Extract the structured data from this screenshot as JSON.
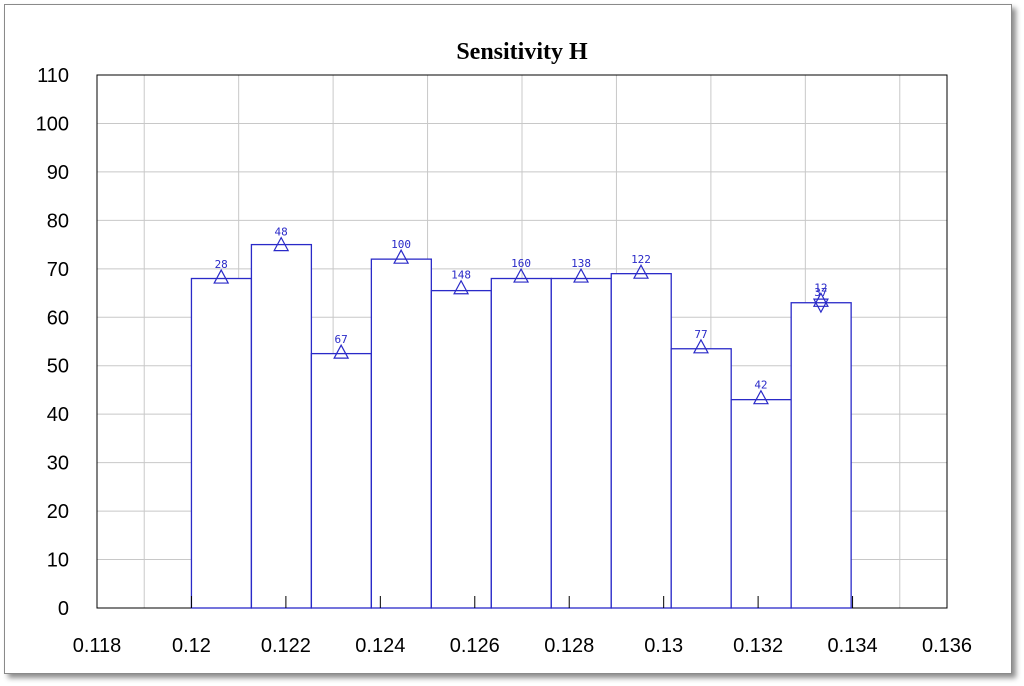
{
  "chart_data": {
    "type": "bar",
    "title": "Sensitivity H",
    "xlabel": "",
    "ylabel": "",
    "xlim": [
      0.118,
      0.136
    ],
    "ylim": [
      0,
      110
    ],
    "x_ticks": [
      "0.118",
      "0.12",
      "0.122",
      "0.124",
      "0.126",
      "0.128",
      "0.13",
      "0.132",
      "0.134",
      "0.136"
    ],
    "y_ticks": [
      "0",
      "10",
      "20",
      "30",
      "40",
      "50",
      "60",
      "70",
      "80",
      "90",
      "100",
      "110"
    ],
    "grid": true,
    "bin_edges": [
      0.12,
      0.12127,
      0.12254,
      0.12381,
      0.12508,
      0.12635,
      0.12762,
      0.12889,
      0.13016,
      0.13143,
      0.1327,
      0.13397
    ],
    "values": [
      68,
      75,
      52.5,
      72,
      65.5,
      68,
      68,
      69,
      53.5,
      43,
      63
    ],
    "markers": [
      {
        "x": 0.12063,
        "y": 68.3,
        "label": "28",
        "symbol": "triangle-up"
      },
      {
        "x": 0.1219,
        "y": 75.0,
        "label": "48",
        "symbol": "triangle-up"
      },
      {
        "x": 0.12317,
        "y": 52.8,
        "label": "67",
        "symbol": "triangle-up"
      },
      {
        "x": 0.12444,
        "y": 72.4,
        "label": "100",
        "symbol": "triangle-up"
      },
      {
        "x": 0.12571,
        "y": 66.1,
        "label": "148",
        "symbol": "triangle-up"
      },
      {
        "x": 0.12698,
        "y": 68.5,
        "label": "160",
        "symbol": "triangle-up"
      },
      {
        "x": 0.12825,
        "y": 68.5,
        "label": "138",
        "symbol": "triangle-up"
      },
      {
        "x": 0.12952,
        "y": 69.3,
        "label": "122",
        "symbol": "triangle-up"
      },
      {
        "x": 0.13079,
        "y": 53.9,
        "label": "77",
        "symbol": "triangle-up"
      },
      {
        "x": 0.13206,
        "y": 43.4,
        "label": "42",
        "symbol": "triangle-up"
      },
      {
        "x": 0.13333,
        "y": 63.5,
        "label": "12",
        "symbol": "triangle-up"
      },
      {
        "x": 0.13333,
        "y": 62.5,
        "label": "37",
        "symbol": "triangle-down"
      }
    ],
    "colors": {
      "bar_stroke": "#2a2ac8",
      "grid": "#c8c8c8",
      "axis": "#000000"
    }
  }
}
